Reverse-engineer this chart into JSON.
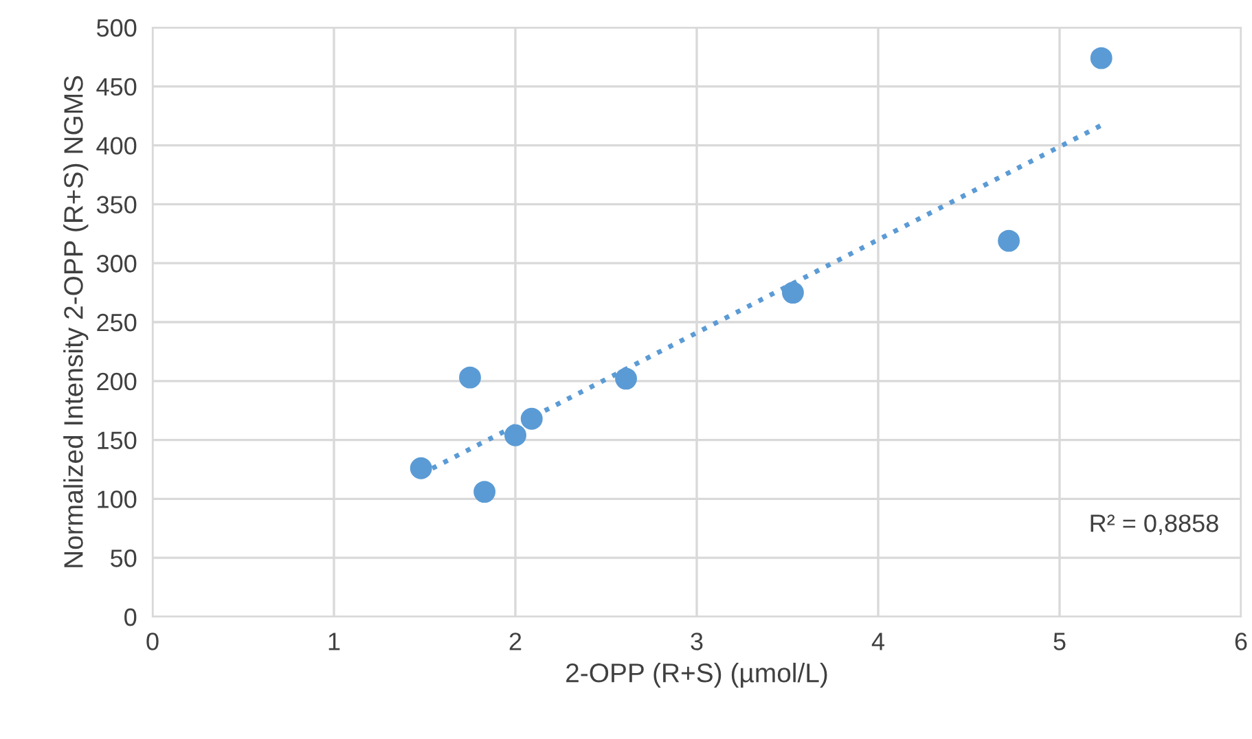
{
  "chart_data": {
    "type": "scatter",
    "xlabel": "2-OPP (R+S) (µmol/L)",
    "ylabel": "Normalized Intensity 2-OPP (R+S) NGMS",
    "xlim": [
      0,
      6
    ],
    "xticks": [
      0,
      1,
      2,
      3,
      4,
      5,
      6
    ],
    "ylim": [
      0,
      500
    ],
    "yticks": [
      0,
      50,
      100,
      150,
      200,
      250,
      300,
      350,
      400,
      450,
      500
    ],
    "grid": true,
    "legend": false,
    "series": [
      {
        "marker": "circle",
        "color": "#5b9bd5",
        "x": [
          1.48,
          1.75,
          1.83,
          2.0,
          2.09,
          2.61,
          3.53,
          4.72,
          5.23
        ],
        "values": [
          126,
          203,
          106,
          154,
          168,
          202,
          275,
          319,
          474
        ]
      },
      {
        "type": "line",
        "color": "#5b9bd5",
        "line_style": "dotted",
        "x": [
          1.48,
          5.23
        ],
        "values": [
          121,
          417
        ]
      }
    ],
    "annotations": [
      "R² = 0,8858"
    ]
  }
}
